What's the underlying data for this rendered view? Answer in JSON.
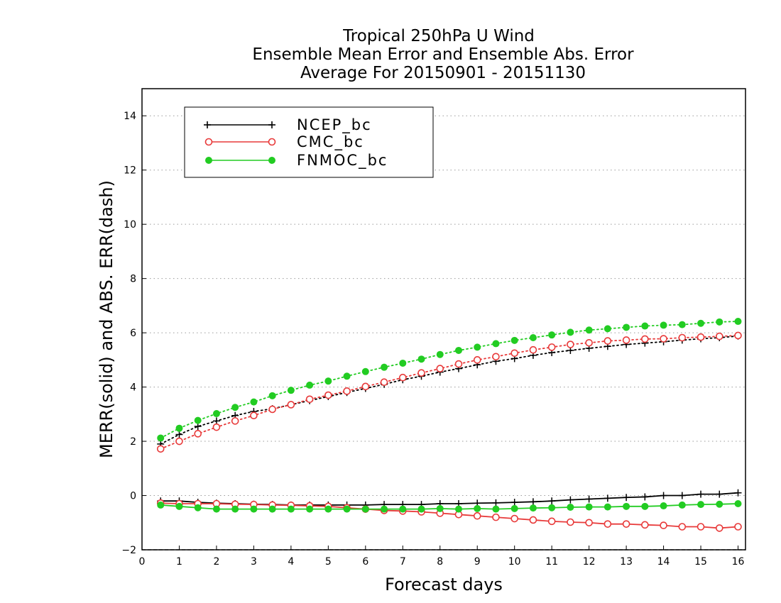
{
  "chart_data": {
    "type": "line",
    "title": [
      "Tropical 250hPa U Wind",
      "Ensemble Mean Error and Ensemble Abs. Error",
      "Average For 20150901 - 20151130"
    ],
    "xlabel": "Forecast days",
    "ylabel": "MERR(solid) and ABS. ERR(dash)",
    "xlim": [
      0,
      16.2
    ],
    "ylim": [
      -2,
      15
    ],
    "xticks": [
      0,
      1,
      2,
      3,
      4,
      5,
      6,
      7,
      8,
      9,
      10,
      11,
      12,
      13,
      14,
      15,
      16
    ],
    "xtick_labels": [
      "0",
      "1",
      "2",
      "3",
      "4",
      "5",
      "6",
      "7",
      "8",
      "9",
      "10",
      "11",
      "12",
      "13",
      "14",
      "15",
      "16"
    ],
    "yticks": [
      -2,
      0,
      2,
      4,
      6,
      8,
      10,
      12,
      14
    ],
    "ytick_labels": [
      "−2",
      "0",
      "2",
      "4",
      "6",
      "8",
      "10",
      "12",
      "14"
    ],
    "grid": "horizontal dotted",
    "legend_position": "top-left",
    "x": [
      0.5,
      1,
      1.5,
      2,
      2.5,
      3,
      3.5,
      4,
      4.5,
      5,
      5.5,
      6,
      6.5,
      7,
      7.5,
      8,
      8.5,
      9,
      9.5,
      10,
      10.5,
      11,
      11.5,
      12,
      12.5,
      13,
      13.5,
      14,
      14.5,
      15,
      15.5,
      16
    ],
    "series": [
      {
        "name": "NCEP_bc",
        "color": "#000000",
        "marker": "plus",
        "merr": [
          -0.2,
          -0.2,
          -0.25,
          -0.28,
          -0.3,
          -0.32,
          -0.33,
          -0.35,
          -0.35,
          -0.35,
          -0.35,
          -0.35,
          -0.33,
          -0.33,
          -0.33,
          -0.3,
          -0.3,
          -0.28,
          -0.27,
          -0.25,
          -0.23,
          -0.2,
          -0.16,
          -0.13,
          -0.1,
          -0.07,
          -0.05,
          0.0,
          0.0,
          0.05,
          0.05,
          0.1
        ],
        "abs_err": [
          1.9,
          2.25,
          2.55,
          2.75,
          2.95,
          3.1,
          3.2,
          3.35,
          3.5,
          3.65,
          3.8,
          3.95,
          4.1,
          4.27,
          4.4,
          4.55,
          4.68,
          4.82,
          4.95,
          5.05,
          5.17,
          5.27,
          5.35,
          5.43,
          5.5,
          5.57,
          5.62,
          5.67,
          5.73,
          5.78,
          5.82,
          5.88
        ]
      },
      {
        "name": "CMC_bc",
        "color": "#e83a3a",
        "marker": "open-circle",
        "merr": [
          -0.28,
          -0.3,
          -0.3,
          -0.3,
          -0.32,
          -0.33,
          -0.35,
          -0.36,
          -0.38,
          -0.4,
          -0.45,
          -0.5,
          -0.55,
          -0.57,
          -0.6,
          -0.65,
          -0.7,
          -0.75,
          -0.8,
          -0.85,
          -0.9,
          -0.95,
          -0.98,
          -1.0,
          -1.05,
          -1.05,
          -1.08,
          -1.1,
          -1.15,
          -1.15,
          -1.2,
          -1.15
        ],
        "abs_err": [
          1.72,
          2.0,
          2.28,
          2.52,
          2.75,
          2.95,
          3.18,
          3.35,
          3.55,
          3.7,
          3.85,
          4.02,
          4.18,
          4.35,
          4.52,
          4.68,
          4.85,
          5.0,
          5.12,
          5.25,
          5.37,
          5.47,
          5.57,
          5.63,
          5.7,
          5.73,
          5.77,
          5.78,
          5.82,
          5.84,
          5.87,
          5.9
        ]
      },
      {
        "name": "FNMOC_bc",
        "color": "#22cc22",
        "marker": "filled-circle",
        "merr": [
          -0.35,
          -0.4,
          -0.45,
          -0.5,
          -0.5,
          -0.5,
          -0.5,
          -0.5,
          -0.5,
          -0.5,
          -0.5,
          -0.5,
          -0.5,
          -0.5,
          -0.5,
          -0.48,
          -0.5,
          -0.48,
          -0.5,
          -0.48,
          -0.46,
          -0.45,
          -0.43,
          -0.42,
          -0.42,
          -0.4,
          -0.4,
          -0.38,
          -0.35,
          -0.33,
          -0.32,
          -0.3
        ],
        "abs_err": [
          2.12,
          2.48,
          2.77,
          3.02,
          3.25,
          3.45,
          3.68,
          3.88,
          4.07,
          4.22,
          4.4,
          4.57,
          4.73,
          4.88,
          5.03,
          5.2,
          5.35,
          5.47,
          5.6,
          5.72,
          5.82,
          5.92,
          6.02,
          6.1,
          6.15,
          6.2,
          6.25,
          6.28,
          6.3,
          6.35,
          6.4,
          6.42
        ]
      }
    ]
  }
}
